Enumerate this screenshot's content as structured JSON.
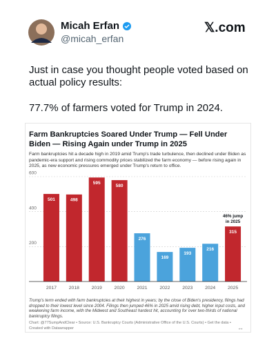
{
  "tweet": {
    "name": "Micah Erfan",
    "handle": "@micah_erfan",
    "site": "𝕏.com",
    "text_lines": [
      "Just in case you thought people voted based on actual policy results:",
      "77.7% of farmers voted for Trump in 2024."
    ]
  },
  "chart_data": {
    "type": "bar",
    "title": "Farm Bankruptcies Soared Under Trump — Fell Under Biden — Rising Again under Trump in 2025",
    "subtitle": "Farm bankruptcies hit a decade high in 2019 amid Trump's trade turbulence, then declined under Biden as pandemic-era support and rising commodity prices stabilized the farm economy — before rising again in 2025, as new economic pressures emerged under Trump's return to office.",
    "categories": [
      "2017",
      "2018",
      "2019",
      "2020",
      "2021",
      "2022",
      "2023",
      "2024",
      "2025"
    ],
    "values": [
      501,
      498,
      595,
      580,
      276,
      169,
      193,
      216,
      315
    ],
    "colors": [
      "#c1272d",
      "#c1272d",
      "#c1272d",
      "#c1272d",
      "#4ba3dc",
      "#4ba3dc",
      "#4ba3dc",
      "#4ba3dc",
      "#c1272d"
    ],
    "annotation": "46% jump in 2025",
    "ylim": [
      0,
      600
    ],
    "yticks": [
      200,
      400,
      600
    ],
    "grid": true,
    "note": "Trump's term ended with farm bankruptcies at their highest in years; by the close of Biden's presidency, filings had dropped to their lowest level since 2004. Filings then jumped 46% in 2025 amid rising debt, higher input costs, and weakening farm income, with the Midwest and Southeast hardest hit, accounting for over two-thirds of national bankruptcy filings.",
    "source": "Chart: @77SumpAndClear • Source: U.S. Bankruptcy Courts (Administrative Office of the U.S. Courts) • Get the data •",
    "credit": "Created with Datawrapper"
  }
}
